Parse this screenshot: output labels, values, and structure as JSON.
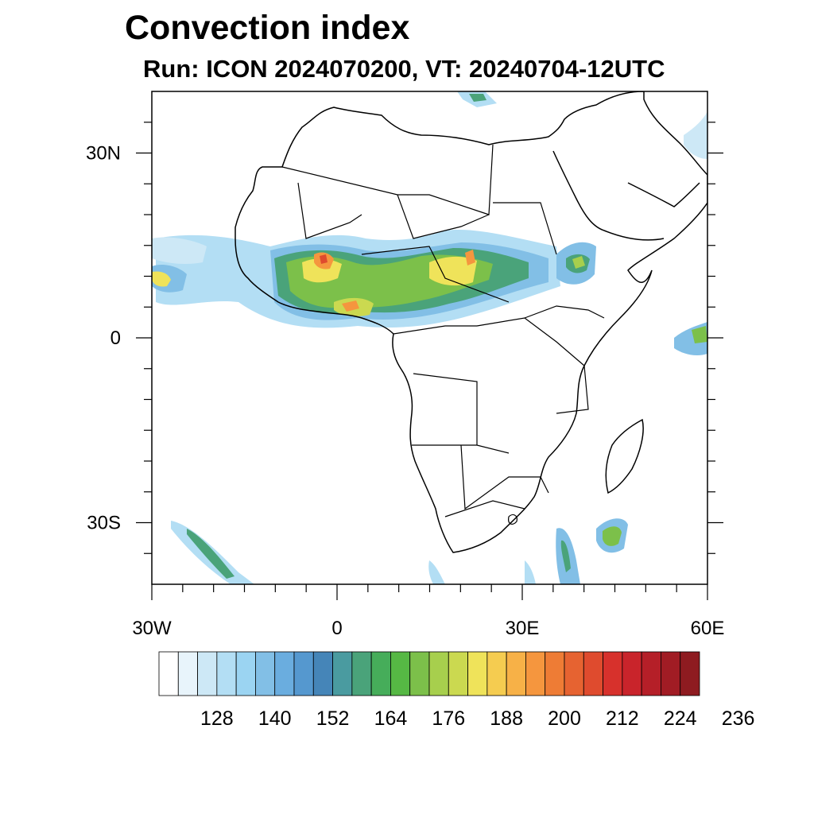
{
  "header": {
    "title": "Convection index",
    "subtitle": "Run: ICON 2024070200,  VT: 20240704-12UTC"
  },
  "map": {
    "lon_range": [
      -30,
      60
    ],
    "lat_range": [
      -40,
      40
    ],
    "x_ticks": [
      {
        "value": -30,
        "label": "30W"
      },
      {
        "value": 0,
        "label": "0"
      },
      {
        "value": 30,
        "label": "30E"
      },
      {
        "value": 60,
        "label": "60E"
      }
    ],
    "y_ticks": [
      {
        "value": 30,
        "label": "30N"
      },
      {
        "value": 0,
        "label": "0"
      },
      {
        "value": -30,
        "label": "30S"
      }
    ],
    "land_fill": "#ffffff",
    "border_color": "#000000"
  },
  "colorbar": {
    "colors": [
      "#ffffff",
      "#e8f4fb",
      "#cde8f6",
      "#b3def4",
      "#9bd4f2",
      "#82bfe6",
      "#6aaddf",
      "#5598cf",
      "#4585b8",
      "#4a9ba0",
      "#4aa37a",
      "#46ad5a",
      "#56b844",
      "#7cc04a",
      "#a7cf4d",
      "#cbd950",
      "#efe35a",
      "#f5cc50",
      "#f7b147",
      "#f5963e",
      "#ee7c35",
      "#e66331",
      "#df4b2e",
      "#d7312c",
      "#c9242b",
      "#b51f28",
      "#a11c24",
      "#8e1b20"
    ],
    "labels": [
      "128",
      "140",
      "152",
      "164",
      "176",
      "188",
      "200",
      "212",
      "224",
      "236"
    ]
  }
}
